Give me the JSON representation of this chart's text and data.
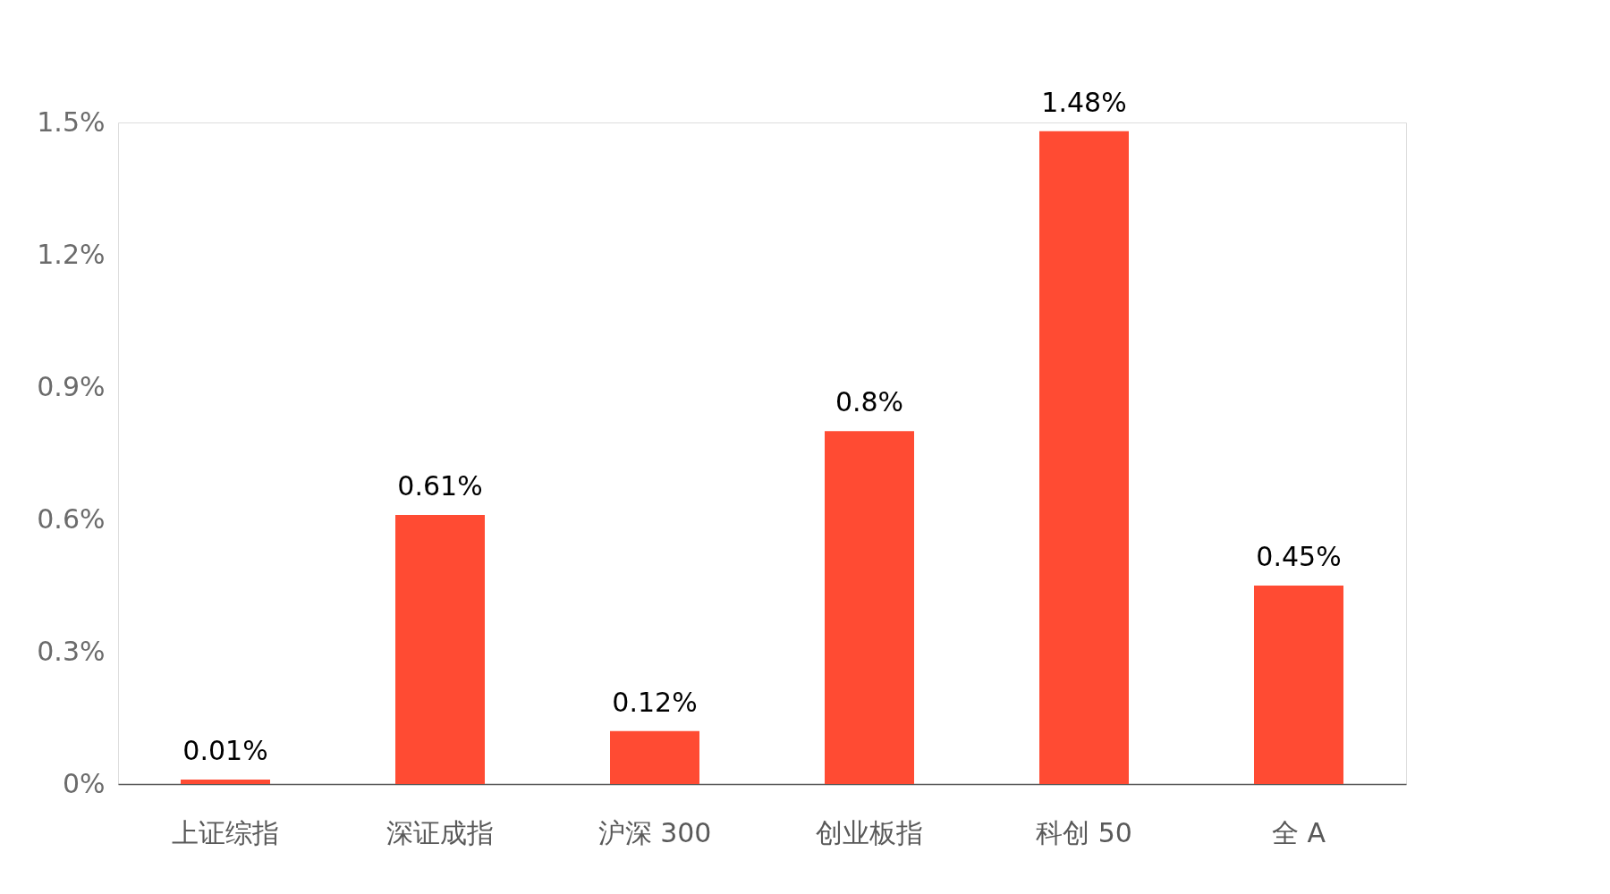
{
  "chart_data": {
    "type": "bar",
    "categories": [
      "上证综指",
      "深证成指",
      "沪深 300",
      "创业板指",
      "科创 50",
      "全 A"
    ],
    "values": [
      0.01,
      0.61,
      0.12,
      0.8,
      1.48,
      0.45
    ],
    "value_labels": [
      "0.01%",
      "0.61%",
      "0.12%",
      "0.8%",
      "1.48%",
      "0.45%"
    ],
    "color": "#ff4b33",
    "ylim": [
      0,
      1.5
    ],
    "yticks": [
      {
        "value": 0,
        "label": "0%"
      },
      {
        "value": 0.3,
        "label": "0.3%"
      },
      {
        "value": 0.6,
        "label": "0.6%"
      },
      {
        "value": 0.9,
        "label": "0.9%"
      },
      {
        "value": 1.2,
        "label": "1.2%"
      },
      {
        "value": 1.5,
        "label": "1.5%"
      }
    ],
    "grid": false
  }
}
